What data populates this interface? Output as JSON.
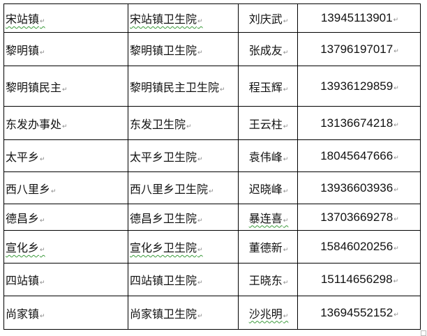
{
  "table": {
    "rows": [
      {
        "town": "宋站镇",
        "hospital": "宋站镇卫生院",
        "name": "刘庆武",
        "phone": "13945113901"
      },
      {
        "town": "黎明镇",
        "hospital": "黎明镇卫生院",
        "name": "张成友",
        "phone": "13796197017"
      },
      {
        "town": "黎明镇民主",
        "hospital": "黎明镇民主卫生院",
        "name": "程玉辉",
        "phone": "13936129859"
      },
      {
        "town": "东发办事处",
        "hospital": "东发卫生院",
        "name": "王云柱",
        "phone": "13136674218"
      },
      {
        "town": "太平乡",
        "hospital": "太平乡卫生院",
        "name": "袁伟峰",
        "phone": "18045647666"
      },
      {
        "town": "西八里乡",
        "hospital": "西八里乡卫生院",
        "name": "迟晓峰",
        "phone": "13936603936"
      },
      {
        "town": "德昌乡",
        "hospital": "德昌乡卫生院",
        "name": "暴连喜",
        "phone": "13703669278"
      },
      {
        "town": "宣化乡",
        "hospital": "宣化乡卫生院",
        "name": "董德新",
        "phone": "15846020256"
      },
      {
        "town": "四站镇",
        "hospital": "四站镇卫生院",
        "name": "王晓东",
        "phone": "15114656298"
      },
      {
        "town": "尚家镇",
        "hospital": "尚家镇卫生院",
        "name": "沙兆明",
        "phone": "13694552152"
      }
    ]
  }
}
